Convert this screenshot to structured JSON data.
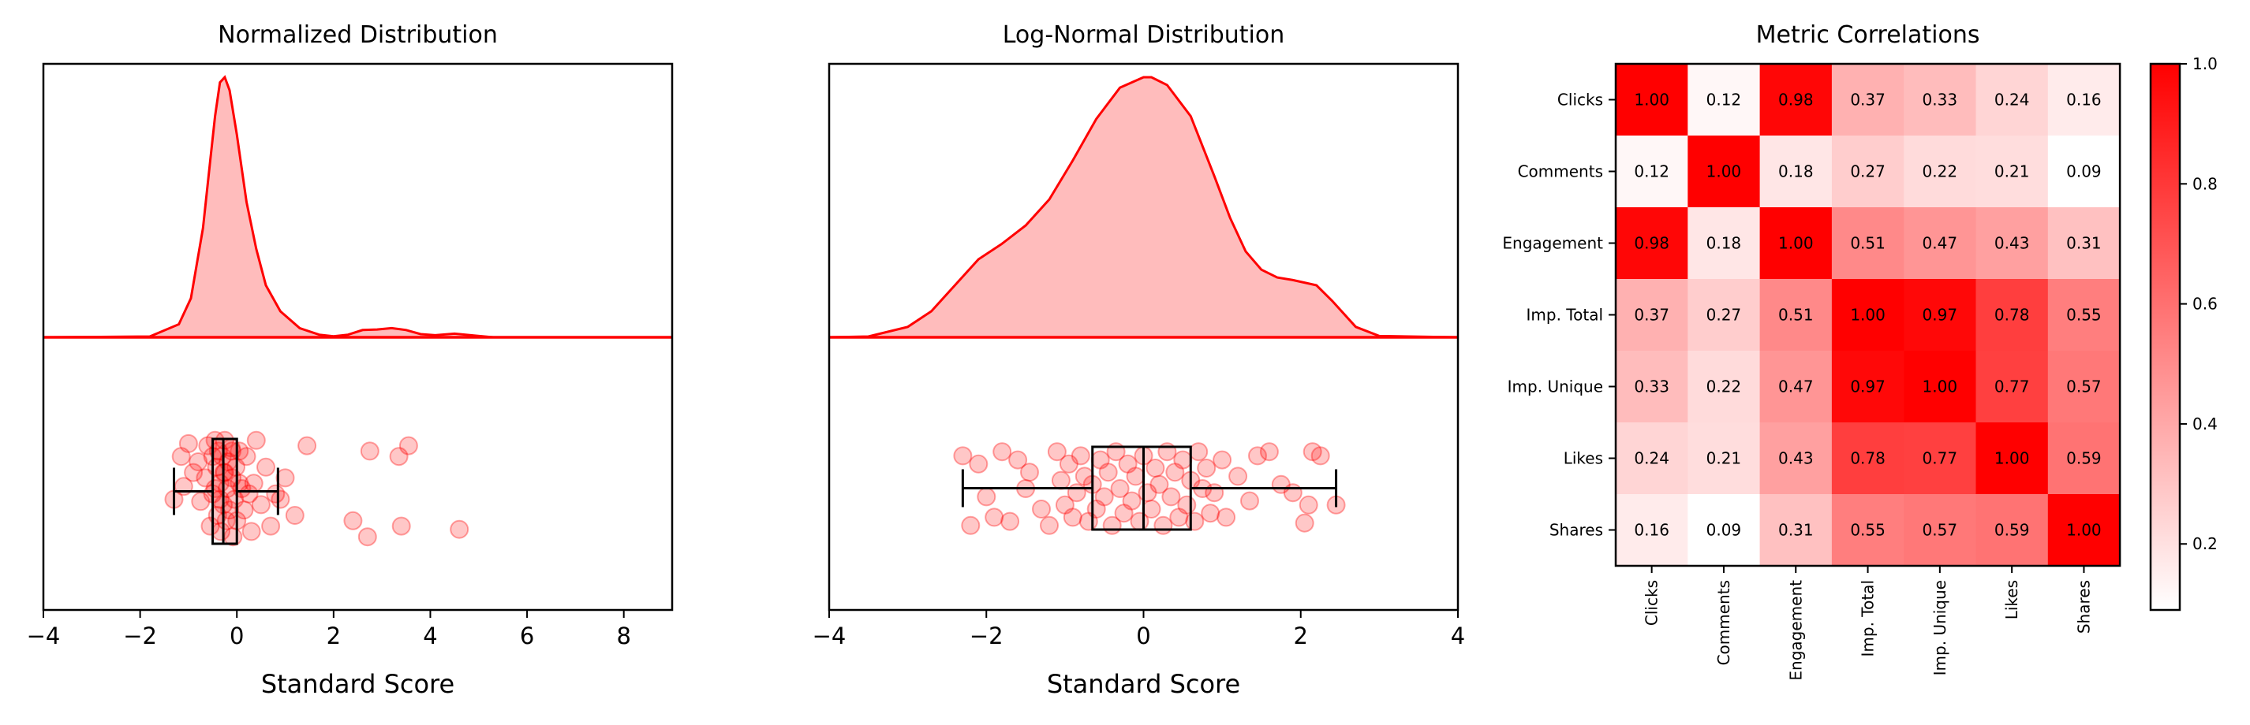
{
  "colors": {
    "accent": "#ff0000",
    "fill": "#ffbcbc",
    "box": "#000000",
    "axis": "#000000"
  },
  "chart_data": [
    {
      "type": "area",
      "title": "Normalized Distribution",
      "xlabel": "Standard Score",
      "xlim": [
        -4,
        9
      ],
      "xticks": [
        -4,
        -2,
        0,
        2,
        4,
        6,
        8
      ],
      "xtick_labels": [
        "−4",
        "−2",
        "0",
        "2",
        "4",
        "6",
        "8"
      ],
      "density": {
        "x": [
          -4.0,
          -1.8,
          -1.2,
          -0.95,
          -0.7,
          -0.55,
          -0.45,
          -0.35,
          -0.25,
          -0.15,
          0.0,
          0.2,
          0.4,
          0.6,
          0.9,
          1.3,
          1.7,
          2.0,
          2.3,
          2.6,
          2.9,
          3.2,
          3.5,
          3.8,
          4.1,
          4.5,
          4.9,
          5.3,
          9.0
        ],
        "y": [
          0.0,
          0.003,
          0.05,
          0.15,
          0.42,
          0.68,
          0.85,
          0.98,
          1.0,
          0.95,
          0.78,
          0.52,
          0.34,
          0.2,
          0.1,
          0.035,
          0.01,
          0.004,
          0.01,
          0.028,
          0.03,
          0.035,
          0.028,
          0.012,
          0.008,
          0.014,
          0.007,
          0.0,
          0.0
        ]
      },
      "box": {
        "whisker_low": -1.3,
        "q1": -0.5,
        "median": -0.28,
        "q3": 0.0,
        "whisker_high": 0.85
      },
      "points": [
        [
          -1.3,
          0.6
        ],
        [
          -1.15,
          0.2
        ],
        [
          -1.0,
          0.08
        ],
        [
          -1.1,
          0.48
        ],
        [
          -0.9,
          0.35
        ],
        [
          -0.8,
          0.25
        ],
        [
          -0.75,
          0.62
        ],
        [
          -0.6,
          0.1
        ],
        [
          -0.5,
          0.55
        ],
        [
          -0.45,
          0.05
        ],
        [
          -0.42,
          0.3
        ],
        [
          -0.4,
          0.75
        ],
        [
          -0.38,
          0.15
        ],
        [
          -0.35,
          0.45
        ],
        [
          -0.33,
          0.9
        ],
        [
          -0.3,
          0.2
        ],
        [
          -0.28,
          0.65
        ],
        [
          -0.27,
          0.35
        ],
        [
          -0.25,
          0.05
        ],
        [
          -0.22,
          0.8
        ],
        [
          -0.2,
          0.5
        ],
        [
          -0.18,
          0.25
        ],
        [
          -0.15,
          0.7
        ],
        [
          -0.12,
          0.12
        ],
        [
          -0.1,
          0.4
        ],
        [
          -0.08,
          0.95
        ],
        [
          -0.05,
          0.6
        ],
        [
          -0.02,
          0.3
        ],
        [
          0.0,
          0.8
        ],
        [
          0.05,
          0.15
        ],
        [
          0.1,
          0.5
        ],
        [
          0.15,
          0.7
        ],
        [
          0.2,
          0.2
        ],
        [
          0.3,
          0.9
        ],
        [
          0.35,
          0.45
        ],
        [
          0.4,
          0.05
        ],
        [
          0.5,
          0.65
        ],
        [
          0.6,
          0.3
        ],
        [
          0.7,
          0.85
        ],
        [
          0.8,
          0.55
        ],
        [
          0.9,
          0.6
        ],
        [
          1.0,
          0.4
        ],
        [
          1.2,
          0.75
        ],
        [
          1.45,
          0.1
        ],
        [
          2.4,
          0.8
        ],
        [
          2.7,
          0.95
        ],
        [
          2.75,
          0.15
        ],
        [
          3.35,
          0.2
        ],
        [
          3.55,
          0.1
        ],
        [
          3.4,
          0.85
        ],
        [
          4.6,
          0.88
        ],
        [
          -0.55,
          0.85
        ],
        [
          -0.65,
          0.4
        ],
        [
          -0.5,
          0.2
        ],
        [
          -0.35,
          0.6
        ],
        [
          -0.25,
          0.35
        ],
        [
          -0.1,
          0.15
        ],
        [
          0.05,
          0.45
        ],
        [
          0.25,
          0.55
        ],
        [
          -0.45,
          0.5
        ]
      ]
    },
    {
      "type": "area",
      "title": "Log-Normal Distribution",
      "xlabel": "Standard Score",
      "xlim": [
        -4,
        4
      ],
      "xticks": [
        -4,
        -2,
        0,
        2,
        4
      ],
      "xtick_labels": [
        "−4",
        "−2",
        "0",
        "2",
        "4"
      ],
      "density": {
        "x": [
          -4.0,
          -3.5,
          -3.0,
          -2.7,
          -2.4,
          -2.1,
          -1.8,
          -1.5,
          -1.2,
          -0.9,
          -0.6,
          -0.3,
          0.0,
          0.1,
          0.3,
          0.6,
          0.9,
          1.1,
          1.3,
          1.5,
          1.7,
          1.9,
          2.2,
          2.4,
          2.7,
          3.0,
          4.0
        ],
        "y": [
          0.0,
          0.003,
          0.04,
          0.1,
          0.2,
          0.3,
          0.36,
          0.43,
          0.53,
          0.68,
          0.84,
          0.96,
          1.0,
          1.0,
          0.97,
          0.85,
          0.62,
          0.46,
          0.33,
          0.26,
          0.23,
          0.22,
          0.2,
          0.14,
          0.04,
          0.005,
          0.0
        ]
      },
      "box": {
        "whisker_low": -2.3,
        "q1": -0.65,
        "median": 0.0,
        "q3": 0.6,
        "whisker_high": 2.45
      },
      "points": [
        [
          -2.3,
          0.1
        ],
        [
          -2.1,
          0.2
        ],
        [
          -2.0,
          0.6
        ],
        [
          -1.9,
          0.85
        ],
        [
          -1.8,
          0.05
        ],
        [
          -1.7,
          0.9
        ],
        [
          -1.6,
          0.15
        ],
        [
          -1.5,
          0.5
        ],
        [
          -1.45,
          0.3
        ],
        [
          -1.3,
          0.75
        ],
        [
          -1.2,
          0.95
        ],
        [
          -1.1,
          0.05
        ],
        [
          -1.05,
          0.4
        ],
        [
          -1.0,
          0.7
        ],
        [
          -0.95,
          0.2
        ],
        [
          -0.9,
          0.85
        ],
        [
          -0.85,
          0.55
        ],
        [
          -0.8,
          0.1
        ],
        [
          -0.75,
          0.35
        ],
        [
          -0.7,
          0.9
        ],
        [
          -0.65,
          0.45
        ],
        [
          -0.6,
          0.75
        ],
        [
          -0.55,
          0.15
        ],
        [
          -0.5,
          0.6
        ],
        [
          -0.45,
          0.3
        ],
        [
          -0.4,
          0.95
        ],
        [
          -0.35,
          0.05
        ],
        [
          -0.3,
          0.5
        ],
        [
          -0.25,
          0.8
        ],
        [
          -0.2,
          0.2
        ],
        [
          -0.15,
          0.65
        ],
        [
          -0.1,
          0.35
        ],
        [
          -0.05,
          0.9
        ],
        [
          0.0,
          0.1
        ],
        [
          0.05,
          0.55
        ],
        [
          0.1,
          0.75
        ],
        [
          0.15,
          0.25
        ],
        [
          0.2,
          0.45
        ],
        [
          0.25,
          0.95
        ],
        [
          0.3,
          0.05
        ],
        [
          0.35,
          0.6
        ],
        [
          0.4,
          0.3
        ],
        [
          0.45,
          0.85
        ],
        [
          0.5,
          0.15
        ],
        [
          0.55,
          0.7
        ],
        [
          0.6,
          0.4
        ],
        [
          0.65,
          0.9
        ],
        [
          0.7,
          0.05
        ],
        [
          0.75,
          0.5
        ],
        [
          0.8,
          0.25
        ],
        [
          0.85,
          0.8
        ],
        [
          0.9,
          0.55
        ],
        [
          1.0,
          0.15
        ],
        [
          1.05,
          0.85
        ],
        [
          1.2,
          0.35
        ],
        [
          1.35,
          0.65
        ],
        [
          1.45,
          0.1
        ],
        [
          1.6,
          0.05
        ],
        [
          1.75,
          0.45
        ],
        [
          2.05,
          0.92
        ],
        [
          2.1,
          0.7
        ],
        [
          2.15,
          0.05
        ],
        [
          2.25,
          0.1
        ],
        [
          2.45,
          0.7
        ],
        [
          -2.2,
          0.95
        ],
        [
          1.9,
          0.55
        ]
      ]
    },
    {
      "type": "heatmap",
      "title": "Metric Correlations",
      "categories": [
        "Clicks",
        "Comments",
        "Engagement",
        "Imp. Total",
        "Imp. Unique",
        "Likes",
        "Shares"
      ],
      "matrix": [
        [
          1.0,
          0.12,
          0.98,
          0.37,
          0.33,
          0.24,
          0.16
        ],
        [
          0.12,
          1.0,
          0.18,
          0.27,
          0.22,
          0.21,
          0.09
        ],
        [
          0.98,
          0.18,
          1.0,
          0.51,
          0.47,
          0.43,
          0.31
        ],
        [
          0.37,
          0.27,
          0.51,
          1.0,
          0.97,
          0.78,
          0.55
        ],
        [
          0.33,
          0.22,
          0.47,
          0.97,
          1.0,
          0.77,
          0.57
        ],
        [
          0.24,
          0.21,
          0.43,
          0.78,
          0.77,
          1.0,
          0.59
        ],
        [
          0.16,
          0.09,
          0.31,
          0.55,
          0.57,
          0.59,
          1.0
        ]
      ],
      "colorbar": {
        "vmin": 0.09,
        "vmax": 1.0,
        "ticks": [
          0.2,
          0.4,
          0.6,
          0.8,
          1.0
        ],
        "tick_labels": [
          "0.2",
          "0.4",
          "0.6",
          "0.8",
          "1.0"
        ]
      }
    }
  ]
}
